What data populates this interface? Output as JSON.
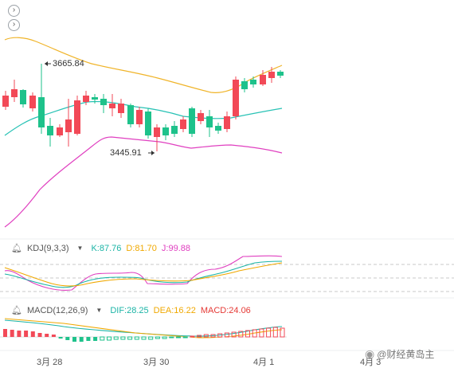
{
  "nav": {
    "collapse_icon": "chevron-right-icon",
    "expand_icon": "chevron-right-icon"
  },
  "price_labels": {
    "high": "3665.84",
    "low": "3445.91"
  },
  "kdj": {
    "name": "KDJ(9,3,3)",
    "k": "K:87.76",
    "d": "D:81.70",
    "j": "J:99.88",
    "colors": {
      "k": "#1bb4a6",
      "d": "#f0a800",
      "j": "#e040c0"
    }
  },
  "macd": {
    "name": "MACD(12,26,9)",
    "dif": "DIF:28.25",
    "dea": "DEA:16.22",
    "macd": "MACD:24.06",
    "colors": {
      "dif": "#1bb4a6",
      "dea": "#f0a800",
      "macd": "#e53935"
    }
  },
  "x_axis": {
    "labels": [
      "3月 28",
      "3月 30",
      "4月 1",
      "4月 3"
    ]
  },
  "watermark": {
    "text": "@财经黄岛主",
    "icon": "weibo-icon"
  },
  "colors": {
    "up": "#f24957",
    "down": "#1ec28b",
    "ma_mid": "#28c2b5",
    "band_upper": "#f0b429",
    "band_lower": "#e040c0"
  }
}
